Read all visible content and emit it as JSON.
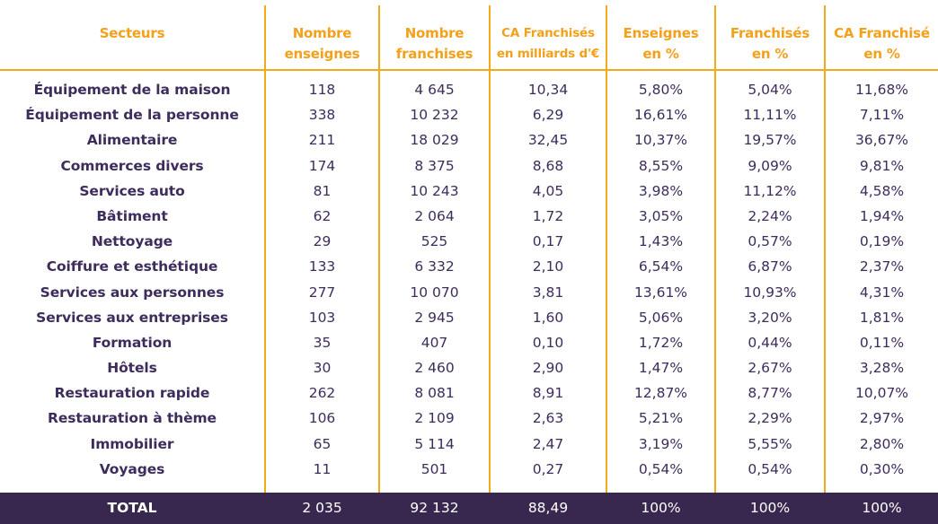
{
  "table": {
    "headers": [
      {
        "line1": "Secteurs",
        "line2": ""
      },
      {
        "line1": "Nombre",
        "line2": "enseignes"
      },
      {
        "line1": "Nombre",
        "line2": "franchises"
      },
      {
        "line1": "CA Franchisés",
        "line2": "en milliards d'€"
      },
      {
        "line1": "Enseignes",
        "line2": "en %"
      },
      {
        "line1": "Franchisés",
        "line2": "en %"
      },
      {
        "line1": "CA Franchisé",
        "line2": "en %"
      }
    ],
    "rows": [
      [
        "Équipement de la maison",
        "118",
        "4 645",
        "10,34",
        "5,80%",
        "5,04%",
        "11,68%"
      ],
      [
        "Équipement de la personne",
        "338",
        "10 232",
        "6,29",
        "16,61%",
        "11,11%",
        "7,11%"
      ],
      [
        "Alimentaire",
        "211",
        "18 029",
        "32,45",
        "10,37%",
        "19,57%",
        "36,67%"
      ],
      [
        "Commerces divers",
        "174",
        "8 375",
        "8,68",
        "8,55%",
        "9,09%",
        "9,81%"
      ],
      [
        "Services auto",
        "81",
        "10 243",
        "4,05",
        "3,98%",
        "11,12%",
        "4,58%"
      ],
      [
        "Bâtiment",
        "62",
        "2 064",
        "1,72",
        "3,05%",
        "2,24%",
        "1,94%"
      ],
      [
        "Nettoyage",
        "29",
        "525",
        "0,17",
        "1,43%",
        "0,57%",
        "0,19%"
      ],
      [
        "Coiffure et esthétique",
        "133",
        "6 332",
        "2,10",
        "6,54%",
        "6,87%",
        "2,37%"
      ],
      [
        "Services aux personnes",
        "277",
        "10 070",
        "3,81",
        "13,61%",
        "10,93%",
        "4,31%"
      ],
      [
        "Services aux entreprises",
        "103",
        "2 945",
        "1,60",
        "5,06%",
        "3,20%",
        "1,81%"
      ],
      [
        "Formation",
        "35",
        "407",
        "0,10",
        "1,72%",
        "0,44%",
        "0,11%"
      ],
      [
        "Hôtels",
        "30",
        "2 460",
        "2,90",
        "1,47%",
        "2,67%",
        "3,28%"
      ],
      [
        "Restauration rapide",
        "262",
        "8 081",
        "8,91",
        "12,87%",
        "8,77%",
        "10,07%"
      ],
      [
        "Restauration à thème",
        "106",
        "2 109",
        "2,63",
        "5,21%",
        "2,29%",
        "2,97%"
      ],
      [
        "Immobilier",
        "65",
        "5 114",
        "2,47",
        "3,19%",
        "5,55%",
        "2,80%"
      ],
      [
        "Voyages",
        "11",
        "501",
        "0,27",
        "0,54%",
        "0,54%",
        "0,30%"
      ]
    ],
    "total": [
      "TOTAL",
      "2 035",
      "92 132",
      "88,49",
      "100%",
      "100%",
      "100%"
    ]
  },
  "colors": {
    "accent": "#f3a91a",
    "header_text": "#f3a01a",
    "body_text": "#3d2c5c",
    "total_bg": "#38284f",
    "total_text": "#ffffff"
  }
}
